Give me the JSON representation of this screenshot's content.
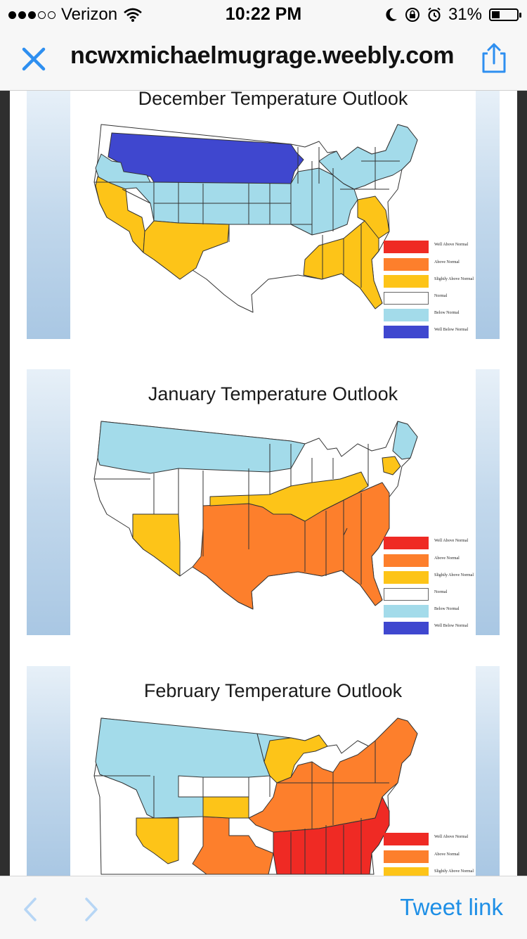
{
  "status_bar": {
    "carrier": "Verizon",
    "time": "10:22 PM",
    "battery_percent": "31%",
    "battery_level": 0.31,
    "signal_bars_filled": 3,
    "signal_bars_total": 5
  },
  "browser": {
    "url": "ncwxmichaelmugrage.weebly.com",
    "accent_color": "#2e8ff0"
  },
  "legend_colors": {
    "well_above": "#ef2a24",
    "above": "#fd7f2c",
    "slightly_above": "#fdc418",
    "normal": "#ffffff",
    "below": "#a3dbea",
    "well_below": "#3f47cf"
  },
  "outlooks": [
    {
      "title": "December Temperature Outlook",
      "legend": [
        "Well Above Normal",
        "Above Normal",
        "Slightly Above Normal",
        "Normal",
        "Below Normal",
        "Well Below Normal"
      ]
    },
    {
      "title": "January Temperature Outlook",
      "legend": [
        "Well Above Normal",
        "Above Normal",
        "Slightly Above Normal",
        "Normal",
        "Below Normal",
        "Well Below Normal"
      ]
    },
    {
      "title": "February Temperature Outlook",
      "legend": [
        "Well Above Normal",
        "Above Normal",
        "Slightly Above Normal"
      ]
    }
  ],
  "bottom_bar": {
    "tweet_link": "Tweet link"
  }
}
